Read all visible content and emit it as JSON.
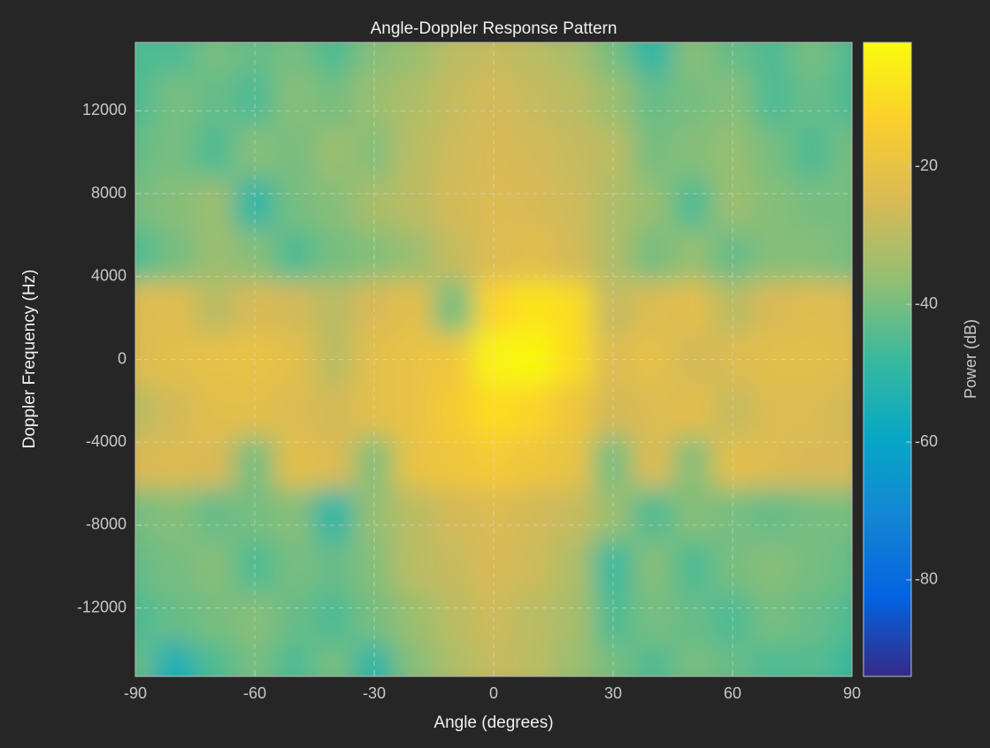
{
  "chart_data": {
    "type": "heatmap",
    "title": "Angle-Doppler Response Pattern",
    "x_label": "Angle (degrees)",
    "y_label": "Doppler Frequency (Hz)",
    "colorbar_label": "Power (dB)",
    "x": [
      -90,
      -80,
      -70,
      -60,
      -50,
      -40,
      -30,
      -20,
      -10,
      0,
      10,
      20,
      30,
      40,
      50,
      60,
      70,
      80,
      90
    ],
    "y": [
      15000,
      12500,
      10000,
      7500,
      5000,
      2500,
      0,
      -2500,
      -5000,
      -7500,
      -10000,
      -12500,
      -15000
    ],
    "z": [
      [
        -45,
        -45,
        -40,
        -42,
        -40,
        -45,
        -38,
        -35,
        -30,
        -28,
        -30,
        -33,
        -40,
        -50,
        -38,
        -42,
        -45,
        -40,
        -45
      ],
      [
        -45,
        -40,
        -42,
        -45,
        -38,
        -40,
        -35,
        -32,
        -28,
        -26,
        -28,
        -30,
        -35,
        -42,
        -40,
        -38,
        -45,
        -42,
        -45
      ],
      [
        -42,
        -40,
        -45,
        -38,
        -40,
        -35,
        -38,
        -30,
        -27,
        -25,
        -26,
        -28,
        -30,
        -40,
        -38,
        -36,
        -40,
        -45,
        -40
      ],
      [
        -40,
        -38,
        -35,
        -50,
        -40,
        -38,
        -33,
        -30,
        -26,
        -24,
        -25,
        -27,
        -32,
        -36,
        -45,
        -35,
        -38,
        -40,
        -40
      ],
      [
        -45,
        -40,
        -35,
        -38,
        -45,
        -40,
        -38,
        -35,
        -28,
        -24,
        -22,
        -26,
        -32,
        -40,
        -36,
        -42,
        -38,
        -38,
        -40
      ],
      [
        -24,
        -23,
        -30,
        -25,
        -26,
        -30,
        -25,
        -22,
        -40,
        -12,
        -8,
        -10,
        -28,
        -24,
        -22,
        -30,
        -25,
        -23,
        -24
      ],
      [
        -24,
        -22,
        -21,
        -20,
        -22,
        -30,
        -22,
        -20,
        -18,
        -4,
        -3,
        -10,
        -24,
        -21,
        -26,
        -24,
        -22,
        -22,
        -23
      ],
      [
        -30,
        -26,
        -22,
        -22,
        -24,
        -26,
        -22,
        -20,
        -15,
        -10,
        -12,
        -18,
        -26,
        -24,
        -22,
        -28,
        -24,
        -24,
        -26
      ],
      [
        -25,
        -24,
        -25,
        -40,
        -22,
        -24,
        -38,
        -20,
        -18,
        -16,
        -18,
        -20,
        -40,
        -24,
        -38,
        -22,
        -24,
        -25,
        -25
      ],
      [
        -40,
        -38,
        -42,
        -40,
        -38,
        -50,
        -36,
        -30,
        -26,
        -24,
        -26,
        -28,
        -35,
        -45,
        -38,
        -40,
        -42,
        -40,
        -40
      ],
      [
        -42,
        -40,
        -38,
        -45,
        -40,
        -42,
        -38,
        -30,
        -28,
        -25,
        -27,
        -32,
        -48,
        -38,
        -45,
        -40,
        -38,
        -40,
        -42
      ],
      [
        -45,
        -42,
        -40,
        -38,
        -42,
        -45,
        -40,
        -35,
        -30,
        -27,
        -30,
        -33,
        -45,
        -40,
        -42,
        -45,
        -40,
        -42,
        -45
      ],
      [
        -42,
        -55,
        -45,
        -40,
        -45,
        -40,
        -50,
        -38,
        -32,
        -28,
        -30,
        -35,
        -40,
        -45,
        -40,
        -42,
        -45,
        -44,
        -48
      ]
    ],
    "xlim": [
      -90,
      90
    ],
    "xticks": [
      -90,
      -60,
      -30,
      0,
      30,
      60,
      90
    ],
    "ylim": [
      -15300,
      15300
    ],
    "yticks": [
      -12000,
      -8000,
      -4000,
      0,
      4000,
      8000,
      12000
    ],
    "clim": [
      -94,
      -2
    ],
    "cticks": [
      -80,
      -60,
      -40,
      -20
    ],
    "colormap": [
      "#352a87",
      "#0363e1",
      "#1485d4",
      "#06a7c6",
      "#38b99e",
      "#92bf73",
      "#d9ba56",
      "#fcce2e",
      "#f9fb0e"
    ],
    "grid": true
  }
}
